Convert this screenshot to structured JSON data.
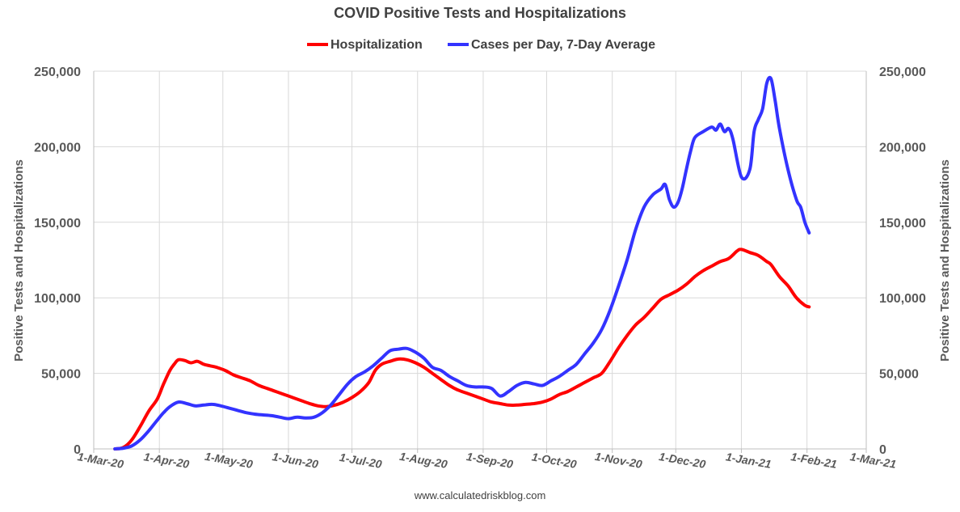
{
  "chart_data": {
    "type": "line",
    "title": "COVID Positive Tests and Hospitalizations",
    "ylabel_left": "Positive Tests and Hospitalizations",
    "ylabel_right": "Positive Tests and Hospitalizations",
    "ylim": [
      0,
      250000
    ],
    "yticks": [
      0,
      50000,
      100000,
      150000,
      200000,
      250000
    ],
    "ytick_labels": [
      "0",
      "50,000",
      "100,000",
      "150,000",
      "200,000",
      "250,000"
    ],
    "xlim_days": [
      0,
      365
    ],
    "x_unit": "days since 1-Mar-20",
    "xticks": [
      {
        "label": "1-Mar-20",
        "day": 0
      },
      {
        "label": "1-Apr-20",
        "day": 31
      },
      {
        "label": "1-May-20",
        "day": 61
      },
      {
        "label": "1-Jun-20",
        "day": 92
      },
      {
        "label": "1-Jul-20",
        "day": 122
      },
      {
        "label": "1-Aug-20",
        "day": 153
      },
      {
        "label": "1-Sep-20",
        "day": 184
      },
      {
        "label": "1-Oct-20",
        "day": 214
      },
      {
        "label": "1-Nov-20",
        "day": 245
      },
      {
        "label": "1-Dec-20",
        "day": 275
      },
      {
        "label": "1-Jan-21",
        "day": 306
      },
      {
        "label": "1-Feb-21",
        "day": 337
      },
      {
        "label": "1-Mar-21",
        "day": 365
      }
    ],
    "legend_position": "top-center",
    "series": [
      {
        "name": "Hospitalization",
        "color": "#ff0000",
        "x": [
          10,
          14,
          18,
          22,
          26,
          30,
          33,
          36,
          38,
          40,
          43,
          46,
          49,
          52,
          55,
          58,
          62,
          66,
          70,
          74,
          78,
          82,
          86,
          90,
          94,
          98,
          102,
          106,
          110,
          114,
          118,
          122,
          126,
          130,
          133,
          136,
          140,
          144,
          148,
          152,
          156,
          160,
          164,
          168,
          172,
          176,
          180,
          184,
          188,
          192,
          196,
          200,
          204,
          208,
          212,
          216,
          220,
          224,
          228,
          232,
          236,
          240,
          244,
          248,
          252,
          256,
          260,
          264,
          268,
          272,
          276,
          280,
          284,
          288,
          292,
          296,
          300,
          304,
          306,
          310,
          314,
          318,
          320,
          324,
          328,
          332,
          336,
          338
        ],
        "values": [
          0,
          1000,
          6000,
          15000,
          25000,
          33000,
          43000,
          52000,
          56000,
          59000,
          58500,
          57000,
          58000,
          56000,
          55000,
          54000,
          52000,
          49000,
          47000,
          45000,
          42000,
          40000,
          38000,
          36000,
          34000,
          32000,
          30000,
          28500,
          28000,
          29000,
          31000,
          34000,
          38000,
          44000,
          52000,
          56000,
          58000,
          59500,
          59000,
          57000,
          54000,
          50000,
          46000,
          42000,
          39000,
          37000,
          35000,
          33000,
          31000,
          30000,
          29000,
          29000,
          29500,
          30000,
          31000,
          33000,
          36000,
          38000,
          41000,
          44000,
          47000,
          50000,
          58000,
          67000,
          75000,
          82000,
          87000,
          93000,
          99000,
          102000,
          105000,
          109000,
          114000,
          118000,
          121000,
          124000,
          126000,
          131000,
          132000,
          130000,
          128000,
          124000,
          122000,
          114000,
          108000,
          100000,
          95000,
          94000
        ]
      },
      {
        "name": "Cases per Day, 7-Day Average",
        "color": "#3333ff",
        "x": [
          10,
          14,
          18,
          22,
          26,
          30,
          33,
          36,
          40,
          44,
          48,
          52,
          56,
          60,
          64,
          68,
          72,
          76,
          80,
          84,
          88,
          92,
          96,
          100,
          104,
          108,
          112,
          116,
          120,
          124,
          128,
          132,
          136,
          140,
          144,
          148,
          152,
          156,
          160,
          164,
          168,
          172,
          176,
          180,
          184,
          188,
          192,
          196,
          200,
          204,
          208,
          212,
          216,
          220,
          224,
          228,
          232,
          236,
          240,
          244,
          248,
          252,
          256,
          260,
          264,
          268,
          270,
          272,
          274,
          276,
          278,
          280,
          282,
          284,
          288,
          292,
          294,
          296,
          298,
          300,
          302,
          306,
          310,
          312,
          314,
          316,
          318,
          320,
          322,
          324,
          328,
          332,
          334,
          336,
          338
        ],
        "values": [
          0,
          500,
          2000,
          6000,
          12000,
          19000,
          24000,
          28000,
          31000,
          30000,
          28500,
          29000,
          29500,
          28500,
          27000,
          25500,
          24000,
          23000,
          22500,
          22000,
          21000,
          20000,
          21000,
          20500,
          21000,
          24000,
          29000,
          36000,
          43000,
          48000,
          51000,
          55000,
          60000,
          65000,
          66000,
          66500,
          64000,
          60000,
          54000,
          52000,
          48000,
          45000,
          42000,
          41000,
          41000,
          40000,
          35000,
          38000,
          42000,
          44000,
          43000,
          42000,
          45000,
          48000,
          52000,
          56000,
          63000,
          70000,
          79000,
          92000,
          108000,
          125000,
          145000,
          160000,
          168000,
          172000,
          175000,
          165000,
          160000,
          163000,
          172000,
          185000,
          197000,
          206000,
          210000,
          213000,
          211000,
          215000,
          210000,
          212000,
          205000,
          180000,
          185000,
          210000,
          218000,
          225000,
          242000,
          245000,
          230000,
          212000,
          185000,
          165000,
          160000,
          150000,
          143000
        ]
      }
    ]
  },
  "legend": {
    "hospitalization_label": "Hospitalization",
    "cases_label": "Cases per Day, 7-Day Average"
  },
  "source_text": "www.calculatedriskblog.com"
}
